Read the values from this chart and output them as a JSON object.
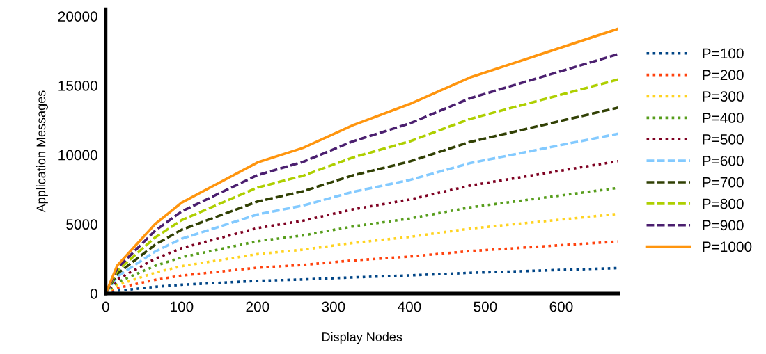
{
  "chart_data": {
    "type": "line",
    "xlabel": "Display Nodes",
    "ylabel": "Application Messages",
    "x": [
      0,
      15,
      65,
      100,
      200,
      260,
      325,
      400,
      480,
      675
    ],
    "xlim": [
      0,
      675
    ],
    "xticks": [
      0,
      100,
      200,
      300,
      400,
      500,
      600
    ],
    "ylim": [
      0,
      20500
    ],
    "yticks": [
      0,
      5000,
      10000,
      15000,
      20000
    ],
    "grid": false,
    "legend": "right",
    "marker": "none",
    "series": [
      {
        "name": "P=100",
        "color": "#004586",
        "line_style": "dotted",
        "values": [
          0,
          190,
          480,
          630,
          910,
          1010,
          1160,
          1300,
          1490,
          1830
        ]
      },
      {
        "name": "P=200",
        "color": "#ff420e",
        "line_style": "dotted",
        "values": [
          0,
          390,
          980,
          1290,
          1860,
          2060,
          2380,
          2660,
          3060,
          3750
        ]
      },
      {
        "name": "P=300",
        "color": "#ffd320",
        "line_style": "dotted",
        "values": [
          0,
          600,
          1500,
          1970,
          2840,
          3160,
          3640,
          4080,
          4680,
          5740
        ]
      },
      {
        "name": "P=400",
        "color": "#579d1c",
        "line_style": "dotted",
        "values": [
          0,
          800,
          1990,
          2610,
          3770,
          4190,
          4830,
          5400,
          6210,
          7610
        ]
      },
      {
        "name": "P=500",
        "color": "#7e0021",
        "line_style": "dotted",
        "values": [
          0,
          1000,
          2500,
          3270,
          4720,
          5250,
          6060,
          6770,
          7780,
          9540
        ]
      },
      {
        "name": "P=600",
        "color": "#83caff",
        "line_style": "dashed",
        "values": [
          0,
          1210,
          3020,
          3950,
          5700,
          6340,
          7320,
          8180,
          9400,
          11520
        ]
      },
      {
        "name": "P=700",
        "color": "#314004",
        "line_style": "dashed",
        "values": [
          0,
          1410,
          3510,
          4600,
          6630,
          7370,
          8510,
          9510,
          10930,
          13400
        ]
      },
      {
        "name": "P=800",
        "color": "#aecf00",
        "line_style": "dashed",
        "values": [
          0,
          1620,
          4040,
          5290,
          7640,
          8490,
          9800,
          10960,
          12590,
          15430
        ]
      },
      {
        "name": "P=900",
        "color": "#4b1f6f",
        "line_style": "dashed",
        "values": [
          0,
          1810,
          4520,
          5920,
          8540,
          9490,
          10960,
          12250,
          14080,
          17260
        ]
      },
      {
        "name": "P=1000",
        "color": "#ff950e",
        "line_style": "solid",
        "values": [
          0,
          2000,
          5000,
          6550,
          9450,
          10500,
          12120,
          13650,
          15580,
          19090
        ]
      }
    ]
  }
}
